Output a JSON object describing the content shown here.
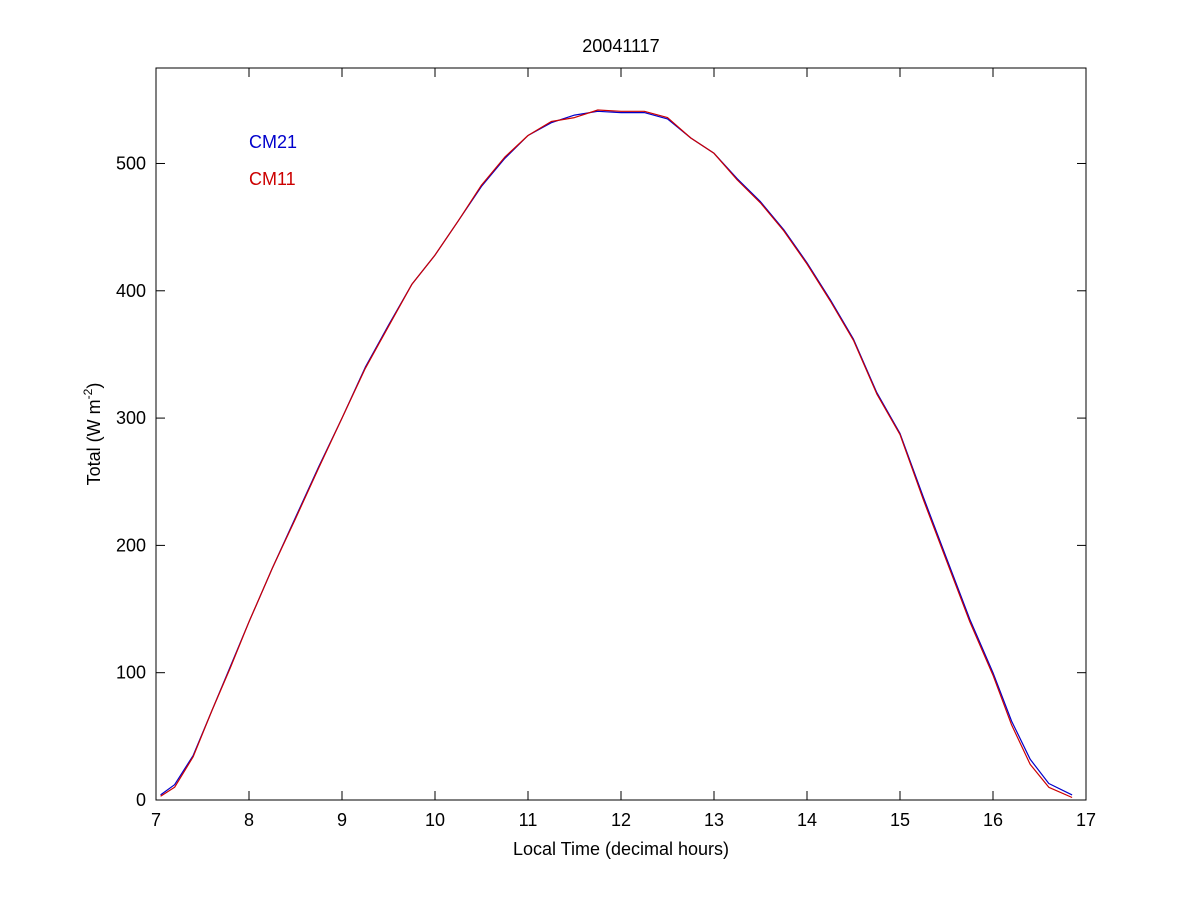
{
  "chart_data": {
    "type": "line",
    "title": "20041117",
    "xlabel": "Local Time (decimal hours)",
    "ylabel_main": "Total (W m",
    "ylabel_sup": "-2",
    "ylabel_close": ")",
    "xlim": [
      7,
      17
    ],
    "ylim": [
      0,
      575
    ],
    "xticks": [
      7,
      8,
      9,
      10,
      11,
      12,
      13,
      14,
      15,
      16,
      17
    ],
    "yticks": [
      0,
      100,
      200,
      300,
      400,
      500
    ],
    "grid": false,
    "legend_position": "top-left",
    "x": [
      7.05,
      7.2,
      7.4,
      7.6,
      7.8,
      8.0,
      8.25,
      8.5,
      8.75,
      9.0,
      9.25,
      9.5,
      9.75,
      10.0,
      10.25,
      10.5,
      10.75,
      11.0,
      11.25,
      11.5,
      11.75,
      12.0,
      12.25,
      12.5,
      12.75,
      13.0,
      13.25,
      13.5,
      13.75,
      14.0,
      14.25,
      14.5,
      14.75,
      15.0,
      15.25,
      15.5,
      15.75,
      16.0,
      16.2,
      16.4,
      16.6,
      16.85
    ],
    "series": [
      {
        "name": "CM21",
        "color": "#0000cc",
        "values": [
          4,
          12,
          35,
          70,
          105,
          140,
          182,
          222,
          262,
          300,
          340,
          373,
          405,
          428,
          455,
          482,
          504,
          522,
          532,
          538,
          541,
          540,
          540,
          535,
          520,
          508,
          488,
          470,
          448,
          422,
          393,
          362,
          320,
          288,
          238,
          190,
          142,
          100,
          62,
          32,
          13,
          4
        ]
      },
      {
        "name": "CM11",
        "color": "#cc0000",
        "values": [
          3,
          10,
          34,
          70,
          104,
          140,
          182,
          221,
          261,
          300,
          339,
          372,
          405,
          428,
          455,
          483,
          505,
          522,
          533,
          536,
          542,
          541,
          541,
          536,
          520,
          508,
          487,
          469,
          447,
          421,
          392,
          361,
          319,
          287,
          236,
          188,
          140,
          98,
          59,
          28,
          10,
          2
        ]
      }
    ]
  }
}
